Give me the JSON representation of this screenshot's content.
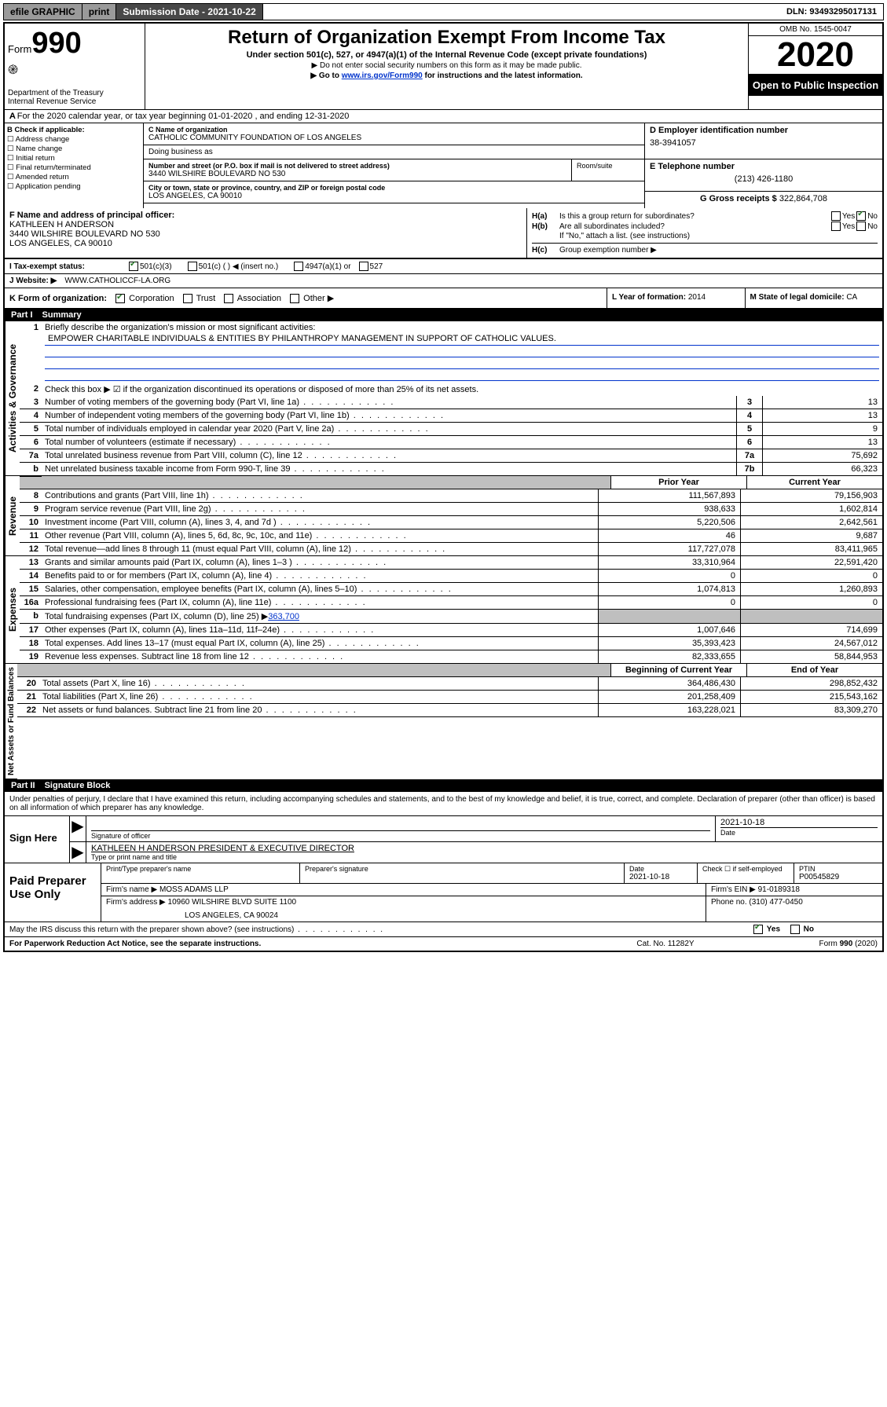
{
  "topbar": {
    "efile": "efile GRAPHIC",
    "print": "print",
    "subdate_label": "Submission Date - ",
    "subdate": "2021-10-22",
    "dln_label": "DLN: ",
    "dln": "93493295017131"
  },
  "header": {
    "form_prefix": "Form",
    "form_num": "990",
    "dept": "Department of the Treasury\nInternal Revenue Service",
    "title": "Return of Organization Exempt From Income Tax",
    "subtitle": "Under section 501(c), 527, or 4947(a)(1) of the Internal Revenue Code (except private foundations)",
    "note1": "▶ Do not enter social security numbers on this form as it may be made public.",
    "note2_pre": "▶ Go to ",
    "note2_link": "www.irs.gov/Form990",
    "note2_post": " for instructions and the latest information.",
    "omb": "OMB No. 1545-0047",
    "year": "2020",
    "open": "Open to Public Inspection"
  },
  "a_row": "A For the 2020 calendar year, or tax year beginning 01-01-2020     , and ending 12-31-2020",
  "b": {
    "label": "B Check if applicable:",
    "items": [
      "Address change",
      "Name change",
      "Initial return",
      "Final return/terminated",
      "Amended return",
      "Application pending"
    ]
  },
  "c": {
    "name_label": "C Name of organization",
    "name": "CATHOLIC COMMUNITY FOUNDATION OF LOS ANGELES",
    "dba_label": "Doing business as",
    "addr_label": "Number and street (or P.O. box if mail is not delivered to street address)",
    "addr": "3440 WILSHIRE BOULEVARD NO 530",
    "room_label": "Room/suite",
    "city_label": "City or town, state or province, country, and ZIP or foreign postal code",
    "city": "LOS ANGELES, CA  90010"
  },
  "d": {
    "label": "D Employer identification number",
    "val": "38-3941057"
  },
  "e": {
    "label": "E Telephone number",
    "val": "(213) 426-1180"
  },
  "g": {
    "label": "G Gross receipts $ ",
    "val": "322,864,708"
  },
  "f": {
    "label": "F  Name and address of principal officer:",
    "name": "KATHLEEN H ANDERSON",
    "addr1": "3440 WILSHIRE BOULEVARD NO 530",
    "addr2": "LOS ANGELES, CA  90010"
  },
  "h": {
    "a_label": "H(a)",
    "a_text": "Is this a group return for subordinates?",
    "b_label": "H(b)",
    "b_text": "Are all subordinates included?",
    "note": "If \"No,\" attach a list. (see instructions)",
    "c_label": "H(c)",
    "c_text": "Group exemption number ▶"
  },
  "i": {
    "label": "I   Tax-exempt status:",
    "opts": [
      "501(c)(3)",
      "501(c) (   ) ◀ (insert no.)",
      "4947(a)(1) or",
      "527"
    ]
  },
  "j": {
    "label": "J   Website: ▶",
    "val": "WWW.CATHOLICCF-LA.ORG"
  },
  "k": {
    "label": "K Form of organization:",
    "opts": [
      "Corporation",
      "Trust",
      "Association",
      "Other ▶"
    ]
  },
  "l": {
    "label": "L Year of formation: ",
    "val": "2014"
  },
  "m": {
    "label": "M State of legal domicile: ",
    "val": "CA"
  },
  "part1": {
    "label": "Part I",
    "title": "Summary"
  },
  "mission_label": "Briefly describe the organization's mission or most significant activities:",
  "mission": "EMPOWER CHARITABLE INDIVIDUALS & ENTITIES BY PHILANTHROPY MANAGEMENT IN SUPPORT OF CATHOLIC VALUES.",
  "line2": "Check this box ▶ ☑ if the organization discontinued its operations or disposed of more than 25% of its net assets.",
  "gov_lines": [
    {
      "n": "3",
      "t": "Number of voting members of the governing body (Part VI, line 1a)",
      "nn": "3",
      "v": "13"
    },
    {
      "n": "4",
      "t": "Number of independent voting members of the governing body (Part VI, line 1b)",
      "nn": "4",
      "v": "13"
    },
    {
      "n": "5",
      "t": "Total number of individuals employed in calendar year 2020 (Part V, line 2a)",
      "nn": "5",
      "v": "9"
    },
    {
      "n": "6",
      "t": "Total number of volunteers (estimate if necessary)",
      "nn": "6",
      "v": "13"
    },
    {
      "n": "7a",
      "t": "Total unrelated business revenue from Part VIII, column (C), line 12",
      "nn": "7a",
      "v": "75,692"
    },
    {
      "n": "b",
      "t": "Net unrelated business taxable income from Form 990-T, line 39",
      "nn": "7b",
      "v": "66,323"
    }
  ],
  "col_heads": {
    "prior": "Prior Year",
    "current": "Current Year"
  },
  "revenue": [
    {
      "n": "8",
      "t": "Contributions and grants (Part VIII, line 1h)",
      "p": "111,567,893",
      "c": "79,156,903"
    },
    {
      "n": "9",
      "t": "Program service revenue (Part VIII, line 2g)",
      "p": "938,633",
      "c": "1,602,814"
    },
    {
      "n": "10",
      "t": "Investment income (Part VIII, column (A), lines 3, 4, and 7d )",
      "p": "5,220,506",
      "c": "2,642,561"
    },
    {
      "n": "11",
      "t": "Other revenue (Part VIII, column (A), lines 5, 6d, 8c, 9c, 10c, and 11e)",
      "p": "46",
      "c": "9,687"
    },
    {
      "n": "12",
      "t": "Total revenue—add lines 8 through 11 (must equal Part VIII, column (A), line 12)",
      "p": "117,727,078",
      "c": "83,411,965"
    }
  ],
  "expenses": [
    {
      "n": "13",
      "t": "Grants and similar amounts paid (Part IX, column (A), lines 1–3 )",
      "p": "33,310,964",
      "c": "22,591,420"
    },
    {
      "n": "14",
      "t": "Benefits paid to or for members (Part IX, column (A), line 4)",
      "p": "0",
      "c": "0"
    },
    {
      "n": "15",
      "t": "Salaries, other compensation, employee benefits (Part IX, column (A), lines 5–10)",
      "p": "1,074,813",
      "c": "1,260,893"
    },
    {
      "n": "16a",
      "t": "Professional fundraising fees (Part IX, column (A), line 11e)",
      "p": "0",
      "c": "0"
    }
  ],
  "line16b": {
    "n": "b",
    "t": "Total fundraising expenses (Part IX, column (D), line 25) ▶",
    "v": "363,700"
  },
  "expenses2": [
    {
      "n": "17",
      "t": "Other expenses (Part IX, column (A), lines 11a–11d, 11f–24e)",
      "p": "1,007,646",
      "c": "714,699"
    },
    {
      "n": "18",
      "t": "Total expenses. Add lines 13–17 (must equal Part IX, column (A), line 25)",
      "p": "35,393,423",
      "c": "24,567,012"
    },
    {
      "n": "19",
      "t": "Revenue less expenses. Subtract line 18 from line 12",
      "p": "82,333,655",
      "c": "58,844,953"
    }
  ],
  "col_heads2": {
    "begin": "Beginning of Current Year",
    "end": "End of Year"
  },
  "netassets": [
    {
      "n": "20",
      "t": "Total assets (Part X, line 16)",
      "p": "364,486,430",
      "c": "298,852,432"
    },
    {
      "n": "21",
      "t": "Total liabilities (Part X, line 26)",
      "p": "201,258,409",
      "c": "215,543,162"
    },
    {
      "n": "22",
      "t": "Net assets or fund balances. Subtract line 21 from line 20",
      "p": "163,228,021",
      "c": "83,309,270"
    }
  ],
  "part2": {
    "label": "Part II",
    "title": "Signature Block"
  },
  "perjury": "Under penalties of perjury, I declare that I have examined this return, including accompanying schedules and statements, and to the best of my knowledge and belief, it is true, correct, and complete. Declaration of preparer (other than officer) is based on all information of which preparer has any knowledge.",
  "sign": {
    "here": "Sign Here",
    "sig_label": "Signature of officer",
    "date": "2021-10-18",
    "date_label": "Date",
    "name": "KATHLEEN H ANDERSON  PRESIDENT & EXECUTIVE DIRECTOR",
    "name_label": "Type or print name and title"
  },
  "paid": {
    "label": "Paid Preparer Use Only",
    "h1": "Print/Type preparer's name",
    "h2": "Preparer's signature",
    "h3": "Date",
    "h3v": "2021-10-18",
    "h4": "Check ☐ if self-employed",
    "h5": "PTIN",
    "h5v": "P00545829",
    "firm_label": "Firm's name     ▶",
    "firm": "MOSS ADAMS LLP",
    "ein_label": "Firm's EIN ▶ ",
    "ein": "91-0189318",
    "addr_label": "Firm's address ▶",
    "addr1": "10960 WILSHIRE BLVD SUITE 1100",
    "addr2": "LOS ANGELES, CA  90024",
    "phone_label": "Phone no. ",
    "phone": "(310) 477-0450"
  },
  "discuss": "May the IRS discuss this return with the preparer shown above? (see instructions)",
  "bottom": {
    "left": "For Paperwork Reduction Act Notice, see the separate instructions.",
    "mid": "Cat. No. 11282Y",
    "right": "Form 990 (2020)"
  },
  "vtabs": {
    "gov": "Activities & Governance",
    "rev": "Revenue",
    "exp": "Expenses",
    "net": "Net Assets or Fund Balances"
  },
  "yes": "Yes",
  "no": "No"
}
